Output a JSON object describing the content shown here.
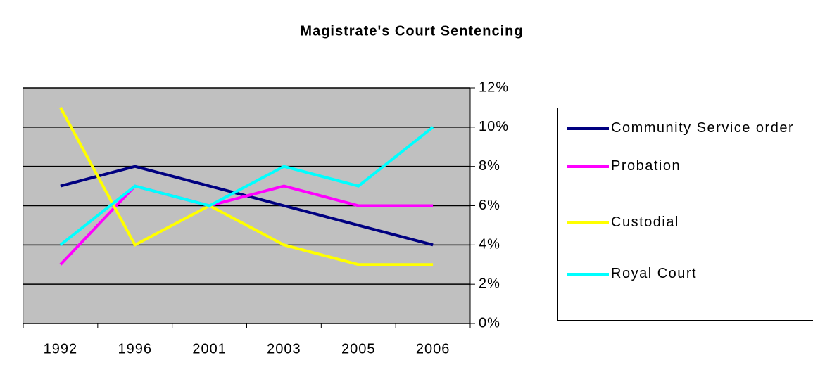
{
  "chart_data": {
    "type": "line",
    "title": "Magistrate's Court Sentencing",
    "categories": [
      "1992",
      "1996",
      "2001",
      "2003",
      "2005",
      "2006"
    ],
    "series": [
      {
        "name": "Community Service order",
        "color": "#000080",
        "values": [
          7,
          8,
          7,
          6,
          5,
          4
        ]
      },
      {
        "name": "Probation",
        "color": "#ff00ff",
        "values": [
          3,
          7,
          6,
          7,
          6,
          6
        ]
      },
      {
        "name": "Custodial",
        "color": "#ffff00",
        "values": [
          11,
          4,
          6,
          4,
          3,
          3
        ]
      },
      {
        "name": "Royal Court",
        "color": "#00ffff",
        "values": [
          4,
          7,
          6,
          8,
          7,
          10
        ]
      }
    ],
    "ylim": [
      0,
      12
    ],
    "yticks": [
      {
        "value": 0,
        "label": "0%"
      },
      {
        "value": 2,
        "label": "2%"
      },
      {
        "value": 4,
        "label": "4%"
      },
      {
        "value": 6,
        "label": "6%"
      },
      {
        "value": 8,
        "label": "8%"
      },
      {
        "value": 10,
        "label": "10%"
      },
      {
        "value": 12,
        "label": "12%"
      }
    ],
    "grid": true,
    "legend": "right"
  }
}
